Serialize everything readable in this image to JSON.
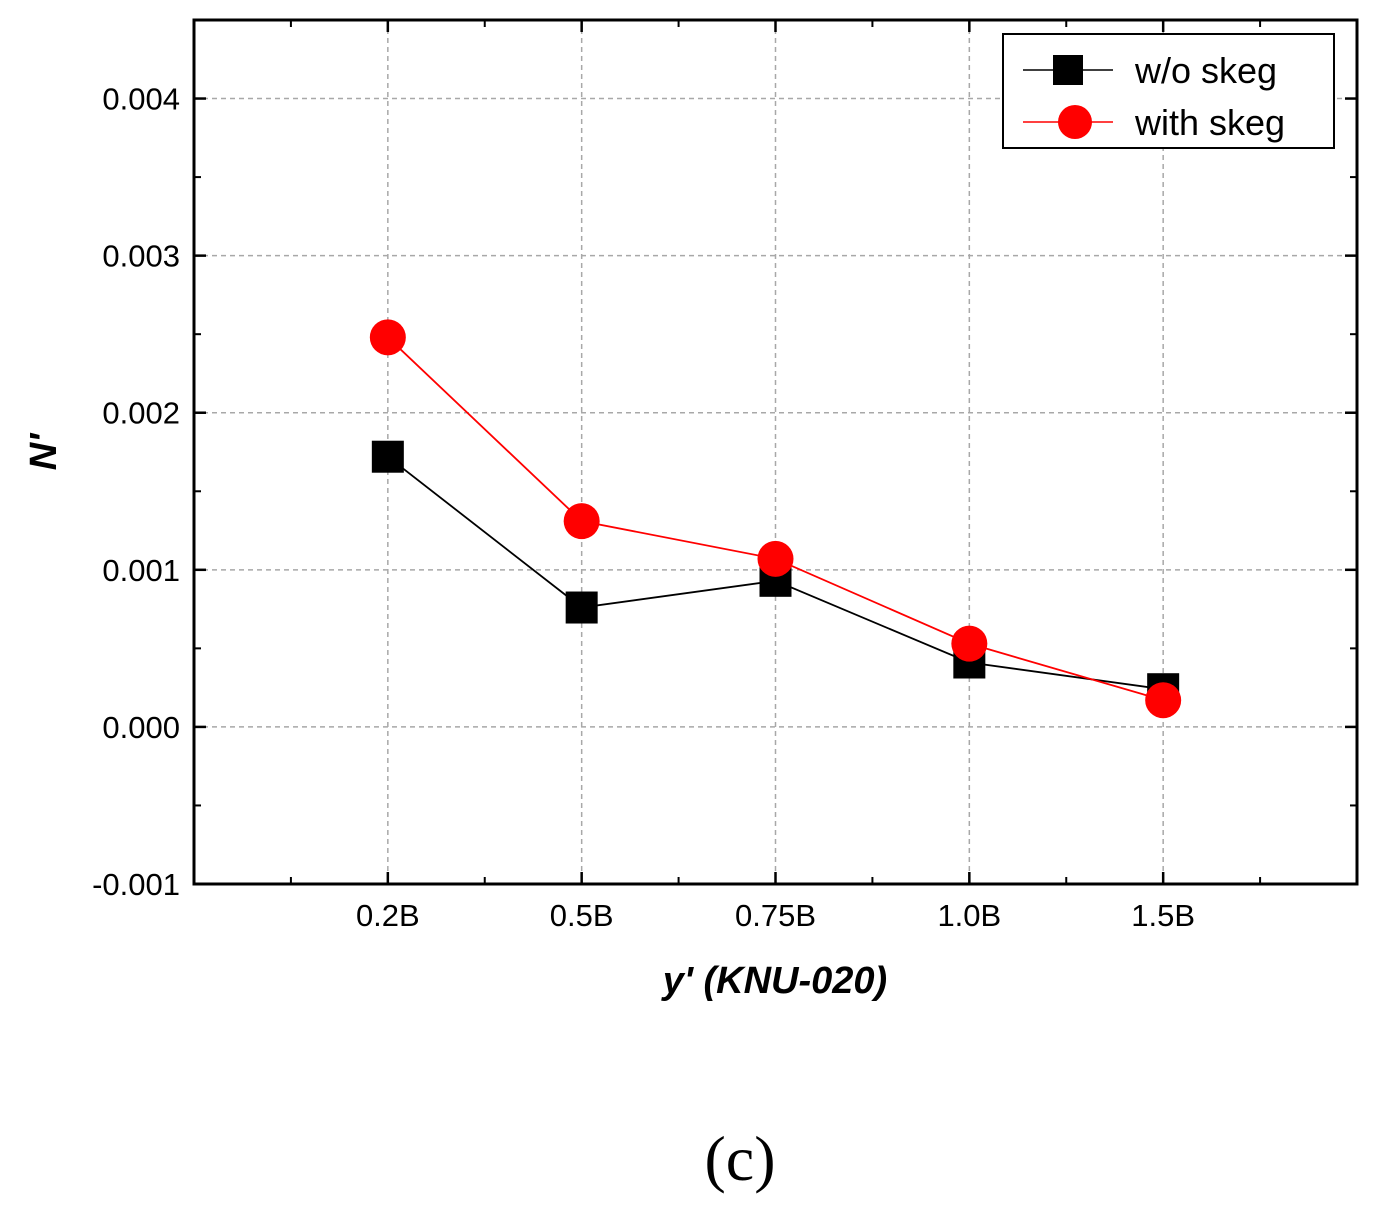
{
  "chart_data": {
    "type": "line",
    "title": "",
    "xlabel": "y'  (KNU-020)",
    "ylabel": "N'",
    "categories": [
      "0.2B",
      "0.5B",
      "0.75B",
      "1.0B",
      "1.5B"
    ],
    "x": [
      1,
      2,
      3,
      4,
      5
    ],
    "xlim": [
      0,
      6
    ],
    "ylim": [
      -0.001,
      0.0045
    ],
    "yticks": [
      -0.001,
      0.0,
      0.001,
      0.002,
      0.003,
      0.004
    ],
    "ytick_labels": [
      "-0.001",
      "0.000",
      "0.001",
      "0.002",
      "0.003",
      "0.004"
    ],
    "grid": true,
    "legend_position": "top-right",
    "series": [
      {
        "name": "w/o skeg",
        "marker": "square",
        "color": "#000000",
        "values": [
          0.00172,
          0.00076,
          0.00093,
          0.00041,
          0.00024
        ]
      },
      {
        "name": "with skeg",
        "marker": "circle",
        "color": "#ff0000",
        "values": [
          0.00248,
          0.00131,
          0.00107,
          0.00053,
          0.00017
        ]
      }
    ]
  },
  "caption": "(c)"
}
